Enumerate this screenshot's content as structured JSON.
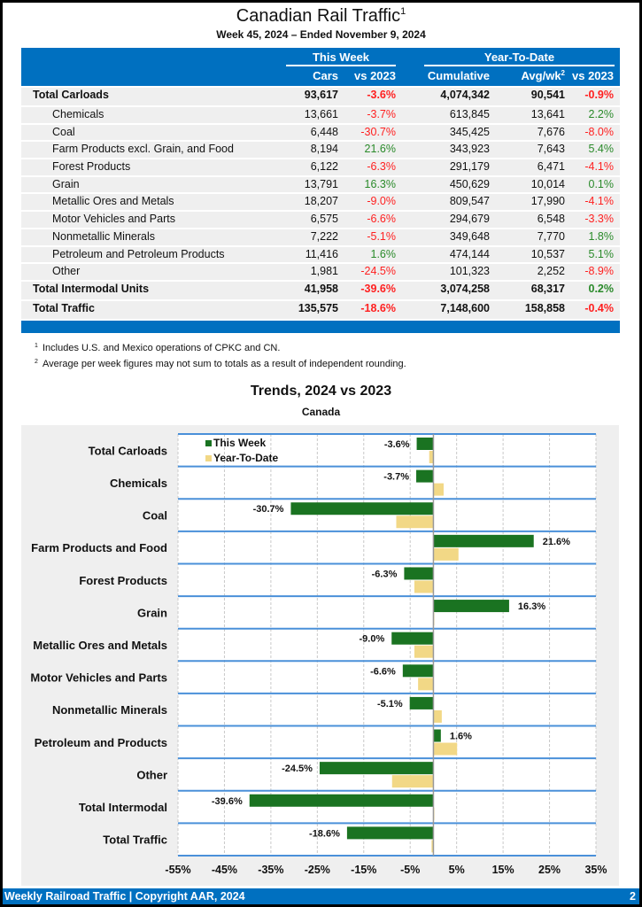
{
  "header": {
    "title": "Canadian Rail Traffic",
    "title_footnote": "1",
    "subtitle": "Week 45, 2024 – Ended November 9, 2024"
  },
  "table": {
    "group_this_week": "This Week",
    "group_ytd": "Year-To-Date",
    "col_cars": "Cars",
    "col_vs2023": "vs 2023",
    "col_cumulative": "Cumulative",
    "col_avgwk": "Avg/wk",
    "col_avgwk_footnote": "2",
    "col_ytd_vs2023": "vs 2023",
    "rows": [
      {
        "label": "Total Carloads",
        "cars": "93,617",
        "vs": "-3.6%",
        "cum": "4,074,342",
        "avg": "90,541",
        "ytdvs": "-0.9%",
        "bold": true
      },
      {
        "label": "Chemicals",
        "cars": "13,661",
        "vs": "-3.7%",
        "cum": "613,845",
        "avg": "13,641",
        "ytdvs": "2.2%"
      },
      {
        "label": "Coal",
        "cars": "6,448",
        "vs": "-30.7%",
        "cum": "345,425",
        "avg": "7,676",
        "ytdvs": "-8.0%"
      },
      {
        "label": "Farm Products excl. Grain, and Food",
        "cars": "8,194",
        "vs": "21.6%",
        "cum": "343,923",
        "avg": "7,643",
        "ytdvs": "5.4%"
      },
      {
        "label": "Forest Products",
        "cars": "6,122",
        "vs": "-6.3%",
        "cum": "291,179",
        "avg": "6,471",
        "ytdvs": "-4.1%"
      },
      {
        "label": "Grain",
        "cars": "13,791",
        "vs": "16.3%",
        "cum": "450,629",
        "avg": "10,014",
        "ytdvs": "0.1%"
      },
      {
        "label": "Metallic Ores and Metals",
        "cars": "18,207",
        "vs": "-9.0%",
        "cum": "809,547",
        "avg": "17,990",
        "ytdvs": "-4.1%"
      },
      {
        "label": "Motor Vehicles and Parts",
        "cars": "6,575",
        "vs": "-6.6%",
        "cum": "294,679",
        "avg": "6,548",
        "ytdvs": "-3.3%"
      },
      {
        "label": "Nonmetallic Minerals",
        "cars": "7,222",
        "vs": "-5.1%",
        "cum": "349,648",
        "avg": "7,770",
        "ytdvs": "1.8%"
      },
      {
        "label": "Petroleum and Petroleum Products",
        "cars": "11,416",
        "vs": "1.6%",
        "cum": "474,144",
        "avg": "10,537",
        "ytdvs": "5.1%"
      },
      {
        "label": "Other",
        "cars": "1,981",
        "vs": "-24.5%",
        "cum": "101,323",
        "avg": "2,252",
        "ytdvs": "-8.9%"
      },
      {
        "label": "Total Intermodal Units",
        "cars": "41,958",
        "vs": "-39.6%",
        "cum": "3,074,258",
        "avg": "68,317",
        "ytdvs": "0.2%",
        "bold": true
      },
      {
        "label": "Total Traffic",
        "cars": "135,575",
        "vs": "-18.6%",
        "cum": "7,148,600",
        "avg": "158,858",
        "ytdvs": "-0.4%",
        "bold": true
      }
    ]
  },
  "footnotes": [
    {
      "mark": "1",
      "text": "Includes U.S. and Mexico operations of CPKC and CN."
    },
    {
      "mark": "2",
      "text": "Average per week figures may not sum to totals as a result of independent rounding."
    }
  ],
  "colors": {
    "brand_blue": "#0070c0",
    "this_week": "#1a7321",
    "ytd": "#f2d886",
    "negative": "#ff2020",
    "positive": "#2a8a2a"
  },
  "chart_data": {
    "type": "bar",
    "orientation": "horizontal",
    "title": "Trends, 2024 vs 2023",
    "subtitle": "Canada",
    "categories": [
      "Total Carloads",
      "Chemicals",
      "Coal",
      "Farm Products and Food",
      "Forest Products",
      "Grain",
      "Metallic Ores and Metals",
      "Motor Vehicles and Parts",
      "Nonmetallic Minerals",
      "Petroleum and Products",
      "Other",
      "Total Intermodal",
      "Total Traffic"
    ],
    "series": [
      {
        "name": "This Week",
        "values": [
          -3.6,
          -3.7,
          -30.7,
          21.6,
          -6.3,
          16.3,
          -9.0,
          -6.6,
          -5.1,
          1.6,
          -24.5,
          -39.6,
          -18.6
        ]
      },
      {
        "name": "Year-To-Date",
        "values": [
          -0.9,
          2.2,
          -8.0,
          5.4,
          -4.1,
          0.1,
          -4.1,
          -3.3,
          1.8,
          5.1,
          -8.9,
          0.2,
          -0.4
        ]
      }
    ],
    "data_labels": [
      "-3.6%",
      "-3.7%",
      "-30.7%",
      "21.6%",
      "-6.3%",
      "16.3%",
      "-9.0%",
      "-6.6%",
      "-5.1%",
      "1.6%",
      "-24.5%",
      "-39.6%",
      "-18.6%"
    ],
    "xticks": [
      "-55%",
      "-45%",
      "-35%",
      "-25%",
      "-15%",
      "-5%",
      "5%",
      "15%",
      "25%",
      "35%"
    ],
    "xtick_values": [
      -55,
      -45,
      -35,
      -25,
      -15,
      -5,
      5,
      15,
      25,
      35
    ],
    "xlim": [
      -55,
      35
    ],
    "xlabel": "",
    "ylabel": "",
    "grid": true,
    "legend": "top-left"
  },
  "footer": {
    "left": "Weekly Railroad Traffic | Copyright AAR, 2024",
    "page": "2"
  }
}
